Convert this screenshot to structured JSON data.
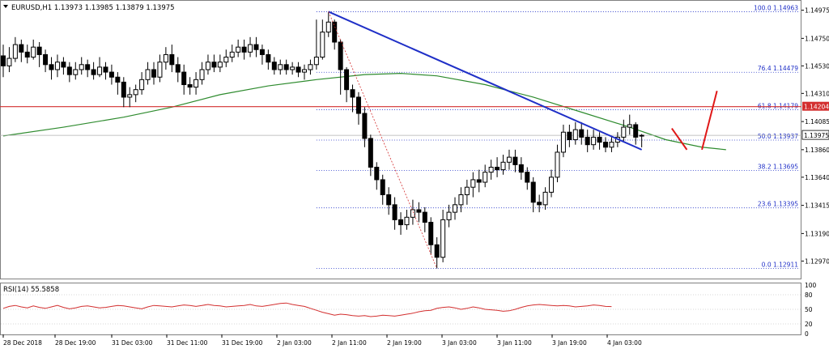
{
  "header": {
    "symbol_line": "EURUSD,H1  1.13973 1.13985 1.13879 1.13975"
  },
  "rsi": {
    "label": "RSI(14) 55.5858",
    "value": 55.5858,
    "levels": [
      20,
      50,
      80,
      100
    ],
    "level_labels": [
      "100",
      "80",
      "50",
      "20",
      "0"
    ],
    "values": [
      52,
      56,
      58,
      55,
      53,
      57,
      54,
      52,
      55,
      58,
      54,
      51,
      53,
      56,
      57,
      55,
      53,
      54,
      56,
      58,
      57,
      55,
      53,
      51,
      55,
      58,
      57,
      56,
      55,
      57,
      59,
      58,
      56,
      58,
      60,
      58,
      57,
      55,
      56,
      57,
      58,
      60,
      57,
      56,
      58,
      60,
      62,
      63,
      60,
      58,
      56,
      52,
      48,
      44,
      41,
      38,
      40,
      39,
      37,
      36,
      37,
      35,
      36,
      38,
      37,
      36,
      38,
      40,
      42,
      45,
      47,
      48,
      52,
      54,
      55,
      53,
      50,
      52,
      55,
      53,
      50,
      49,
      48,
      46,
      47,
      50,
      54,
      57,
      59,
      60,
      59,
      58,
      57,
      58,
      57,
      55,
      56,
      57,
      59,
      58,
      56,
      55.6
    ],
    "color": "#d32f2f"
  },
  "colors": {
    "bull_body": "#ffffff",
    "bear_body": "#000000",
    "trendline": "#1f2fc7",
    "ma_line": "#2e8b2e",
    "resistance_line": "#d32f2f",
    "fib_line": "#1f2fc7",
    "zigzag": "#d32f2f",
    "price_badge_bg": "#d32f2f",
    "price_badge_text": "#ffffff",
    "arrow": "#e01818"
  },
  "chart_data": {
    "type": "candlestick",
    "title": "EURUSD,H1",
    "ohlc_header": {
      "open": 1.13973,
      "high": 1.13985,
      "low": 1.13879,
      "close": 1.13975
    },
    "x_labels": [
      "28 Dec 2018",
      "28 Dec 19:00",
      "31 Dec 03:00",
      "31 Dec 11:00",
      "31 Dec 19:00",
      "2 Jan 03:00",
      "2 Jan 11:00",
      "2 Jan 19:00",
      "3 Jan 03:00",
      "3 Jan 11:00",
      "3 Jan 19:00",
      "4 Jan 03:00"
    ],
    "y_ticks": [
      1.14975,
      1.1475,
      1.1453,
      1.1431,
      1.14085,
      1.1386,
      1.1364,
      1.13415,
      1.1319,
      1.1297
    ],
    "y_tick_labels": [
      "1.14975",
      "1.14750",
      "1.14530",
      "1.14310",
      "1.14085",
      "1.13860",
      "1.13640",
      "1.13415",
      "1.13190",
      "1.12970"
    ],
    "ylim": [
      1.1283,
      1.1505
    ],
    "current_price": 1.13975,
    "current_price_label": "1.13975",
    "resistance": {
      "price": 1.14204,
      "label": "1.14204"
    },
    "fibonacci": [
      {
        "label": "100.0 1.14963",
        "price": 1.14963
      },
      {
        "label": "76.4 1.14479",
        "price": 1.14479
      },
      {
        "label": "61.8 1.14179",
        "price": 1.14179
      },
      {
        "label": "50.0 1.13937",
        "price": 1.13937
      },
      {
        "label": "38.2 1.13695",
        "price": 1.13695
      },
      {
        "label": "23.6 1.13395",
        "price": 1.13395
      },
      {
        "label": "0.0 1.12911",
        "price": 1.12911
      }
    ],
    "trendline": {
      "from": {
        "bar": 54,
        "price": 1.14963
      },
      "to": {
        "bar": 106,
        "price": 1.1386
      }
    },
    "zigzag": {
      "from": {
        "bar": 54,
        "price": 1.14963
      },
      "to": {
        "bar": 72,
        "price": 1.12911
      }
    },
    "candles": [
      [
        1.1461,
        1.1453,
        1.147,
        1.1444
      ],
      [
        1.1453,
        1.1459,
        1.1468,
        1.1448
      ],
      [
        1.1459,
        1.147,
        1.1476,
        1.1456
      ],
      [
        1.147,
        1.1464,
        1.1474,
        1.1456
      ],
      [
        1.1464,
        1.146,
        1.147,
        1.1455
      ],
      [
        1.146,
        1.1468,
        1.1474,
        1.1458
      ],
      [
        1.1468,
        1.1462,
        1.1472,
        1.1452
      ],
      [
        1.1462,
        1.1454,
        1.1466,
        1.1448
      ],
      [
        1.1454,
        1.145,
        1.146,
        1.1442
      ],
      [
        1.145,
        1.1456,
        1.1462,
        1.1444
      ],
      [
        1.1456,
        1.1452,
        1.146,
        1.1446
      ],
      [
        1.1452,
        1.1446,
        1.1456,
        1.144
      ],
      [
        1.1446,
        1.145,
        1.1456,
        1.1442
      ],
      [
        1.145,
        1.1454,
        1.146,
        1.1446
      ],
      [
        1.1454,
        1.145,
        1.1458,
        1.1444
      ],
      [
        1.145,
        1.1446,
        1.1456,
        1.1442
      ],
      [
        1.1446,
        1.1452,
        1.146,
        1.1444
      ],
      [
        1.1452,
        1.1448,
        1.1456,
        1.1442
      ],
      [
        1.1448,
        1.1444,
        1.1454,
        1.1438
      ],
      [
        1.1444,
        1.144,
        1.1448,
        1.143
      ],
      [
        1.144,
        1.1428,
        1.1444,
        1.142
      ],
      [
        1.1428,
        1.143,
        1.1436,
        1.142
      ],
      [
        1.143,
        1.1434,
        1.1438,
        1.1424
      ],
      [
        1.1434,
        1.1442,
        1.1448,
        1.143
      ],
      [
        1.1442,
        1.145,
        1.1456,
        1.1438
      ],
      [
        1.145,
        1.1444,
        1.1456,
        1.1438
      ],
      [
        1.1444,
        1.1456,
        1.1462,
        1.144
      ],
      [
        1.1456,
        1.1462,
        1.1468,
        1.145
      ],
      [
        1.1462,
        1.1454,
        1.147,
        1.1448
      ],
      [
        1.1454,
        1.1448,
        1.146,
        1.144
      ],
      [
        1.1448,
        1.1438,
        1.1454,
        1.143
      ],
      [
        1.1438,
        1.1436,
        1.1444,
        1.143
      ],
      [
        1.1436,
        1.1442,
        1.1448,
        1.143
      ],
      [
        1.1442,
        1.145,
        1.1456,
        1.1438
      ],
      [
        1.145,
        1.1456,
        1.1462,
        1.1446
      ],
      [
        1.1456,
        1.1452,
        1.1462,
        1.1448
      ],
      [
        1.1452,
        1.1456,
        1.1462,
        1.1448
      ],
      [
        1.1456,
        1.146,
        1.1466,
        1.1452
      ],
      [
        1.146,
        1.1464,
        1.147,
        1.1456
      ],
      [
        1.1464,
        1.1468,
        1.1474,
        1.146
      ],
      [
        1.1468,
        1.1464,
        1.1474,
        1.1458
      ],
      [
        1.1464,
        1.147,
        1.1476,
        1.146
      ],
      [
        1.147,
        1.1466,
        1.1476,
        1.146
      ],
      [
        1.1466,
        1.1462,
        1.147,
        1.1454
      ],
      [
        1.1462,
        1.1456,
        1.1466,
        1.145
      ],
      [
        1.1456,
        1.145,
        1.146,
        1.1446
      ],
      [
        1.145,
        1.1454,
        1.1458,
        1.1446
      ],
      [
        1.1454,
        1.145,
        1.1458,
        1.1446
      ],
      [
        1.145,
        1.1452,
        1.1456,
        1.1446
      ],
      [
        1.1452,
        1.1448,
        1.1456,
        1.1444
      ],
      [
        1.1448,
        1.145,
        1.1454,
        1.1442
      ],
      [
        1.145,
        1.1454,
        1.1458,
        1.1446
      ],
      [
        1.1454,
        1.146,
        1.149,
        1.145
      ],
      [
        1.146,
        1.148,
        1.149,
        1.1458
      ],
      [
        1.148,
        1.1488,
        1.14963,
        1.1476
      ],
      [
        1.1488,
        1.1472,
        1.149,
        1.1466
      ],
      [
        1.1472,
        1.145,
        1.1474,
        1.143
      ],
      [
        1.145,
        1.1434,
        1.1452,
        1.1424
      ],
      [
        1.1434,
        1.1428,
        1.1438,
        1.1416
      ],
      [
        1.1428,
        1.1415,
        1.1432,
        1.1406
      ],
      [
        1.1415,
        1.1395,
        1.142,
        1.1388
      ],
      [
        1.1395,
        1.1372,
        1.1398,
        1.1365
      ],
      [
        1.1372,
        1.1362,
        1.1376,
        1.1354
      ],
      [
        1.1362,
        1.135,
        1.1366,
        1.1342
      ],
      [
        1.135,
        1.1342,
        1.1356,
        1.1334
      ],
      [
        1.1342,
        1.133,
        1.1348,
        1.1322
      ],
      [
        1.133,
        1.1326,
        1.1336,
        1.1318
      ],
      [
        1.1326,
        1.1332,
        1.1338,
        1.1322
      ],
      [
        1.1332,
        1.1338,
        1.1346,
        1.1326
      ],
      [
        1.1338,
        1.1336,
        1.1344,
        1.1328
      ],
      [
        1.1336,
        1.1328,
        1.134,
        1.132
      ],
      [
        1.1328,
        1.131,
        1.1332,
        1.1302
      ],
      [
        1.131,
        1.13,
        1.1316,
        1.12911
      ],
      [
        1.13,
        1.133,
        1.1338,
        1.1296
      ],
      [
        1.133,
        1.1336,
        1.1342,
        1.1324
      ],
      [
        1.1336,
        1.1342,
        1.1348,
        1.133
      ],
      [
        1.1342,
        1.135,
        1.1356,
        1.1336
      ],
      [
        1.135,
        1.1356,
        1.1362,
        1.1342
      ],
      [
        1.1356,
        1.1362,
        1.1368,
        1.1348
      ],
      [
        1.1362,
        1.136,
        1.137,
        1.1352
      ],
      [
        1.136,
        1.1368,
        1.1374,
        1.1356
      ],
      [
        1.1368,
        1.1372,
        1.1378,
        1.1362
      ],
      [
        1.1372,
        1.137,
        1.138,
        1.1364
      ],
      [
        1.137,
        1.1376,
        1.1382,
        1.1366
      ],
      [
        1.1376,
        1.138,
        1.1386,
        1.137
      ],
      [
        1.138,
        1.1374,
        1.1386,
        1.1368
      ],
      [
        1.1374,
        1.1368,
        1.138,
        1.1362
      ],
      [
        1.1368,
        1.136,
        1.1372,
        1.1354
      ],
      [
        1.136,
        1.1344,
        1.1364,
        1.1336
      ],
      [
        1.1344,
        1.1342,
        1.135,
        1.1336
      ],
      [
        1.1342,
        1.1352,
        1.1356,
        1.1338
      ],
      [
        1.1352,
        1.1364,
        1.137,
        1.1348
      ],
      [
        1.1364,
        1.1384,
        1.139,
        1.136
      ],
      [
        1.1384,
        1.14,
        1.1406,
        1.138
      ],
      [
        1.14,
        1.1394,
        1.1406,
        1.1388
      ],
      [
        1.1394,
        1.1402,
        1.1408,
        1.139
      ],
      [
        1.1402,
        1.1396,
        1.1408,
        1.139
      ],
      [
        1.1396,
        1.139,
        1.1402,
        1.1384
      ],
      [
        1.139,
        1.1396,
        1.1402,
        1.1386
      ],
      [
        1.1396,
        1.1392,
        1.14,
        1.1386
      ],
      [
        1.1392,
        1.1388,
        1.1396,
        1.1384
      ],
      [
        1.1388,
        1.1392,
        1.1396,
        1.1384
      ],
      [
        1.1392,
        1.1396,
        1.14,
        1.1388
      ],
      [
        1.1396,
        1.1404,
        1.141,
        1.1392
      ],
      [
        1.1404,
        1.1406,
        1.1414,
        1.1398
      ],
      [
        1.1406,
        1.1396,
        1.1408,
        1.139
      ],
      [
        1.13973,
        1.13975,
        1.13985,
        1.13879
      ]
    ],
    "ma_line": [
      [
        0,
        1.1397
      ],
      [
        10,
        1.1404
      ],
      [
        20,
        1.1412
      ],
      [
        28,
        1.142
      ],
      [
        36,
        1.143
      ],
      [
        44,
        1.1437
      ],
      [
        52,
        1.1442
      ],
      [
        60,
        1.1446
      ],
      [
        66,
        1.1447
      ],
      [
        72,
        1.1445
      ],
      [
        80,
        1.1438
      ],
      [
        88,
        1.1428
      ],
      [
        96,
        1.1416
      ],
      [
        104,
        1.1404
      ],
      [
        110,
        1.1394
      ],
      [
        116,
        1.1388
      ],
      [
        120,
        1.1386
      ]
    ],
    "arrow_down": {
      "from": {
        "bar": 111,
        "price": 1.1403
      },
      "to": {
        "bar": 113.5,
        "price": 1.1386
      }
    },
    "arrow_up": {
      "from": {
        "bar": 116,
        "price": 1.1386
      },
      "to": {
        "bar": 118.5,
        "price": 1.1433
      }
    }
  }
}
